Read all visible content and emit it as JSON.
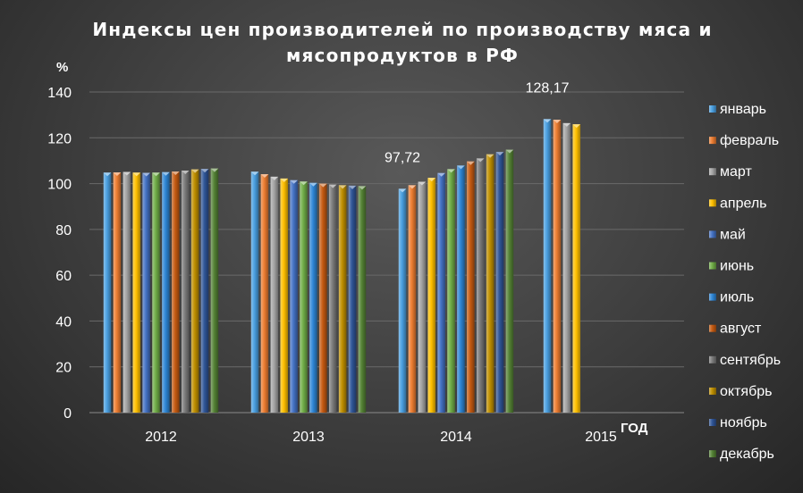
{
  "chart_data": {
    "type": "bar",
    "title_line1": "Индексы цен производителей по производству мяса и",
    "title_line2": "мясопродуктов  в РФ",
    "ylabel": "%",
    "xlabel": "ГОД",
    "ylim": [
      0,
      140
    ],
    "yticks": [
      "0",
      "20",
      "40",
      "60",
      "80",
      "100",
      "120",
      "140"
    ],
    "ytick_values": [
      0,
      20,
      40,
      60,
      80,
      100,
      120,
      140
    ],
    "categories": [
      "2012",
      "2013",
      "2014",
      "2015"
    ],
    "grid": true,
    "legend_position": "right",
    "series": [
      {
        "name": "январь",
        "color": "#4a9fe0",
        "values": [
          104.8,
          105.2,
          97.72,
          128.17
        ]
      },
      {
        "name": "февраль",
        "color": "#ed7d31",
        "values": [
          104.9,
          104.1,
          99.3,
          127.9
        ]
      },
      {
        "name": "март",
        "color": "#a5a5a5",
        "values": [
          105.1,
          103.0,
          100.8,
          126.4
        ]
      },
      {
        "name": "апрель",
        "color": "#ffc000",
        "values": [
          104.8,
          102.2,
          102.5,
          125.9
        ]
      },
      {
        "name": "май",
        "color": "#4472c4",
        "values": [
          104.7,
          101.5,
          104.6,
          null
        ]
      },
      {
        "name": "июнь",
        "color": "#70ad47",
        "values": [
          104.8,
          100.9,
          106.3,
          null
        ]
      },
      {
        "name": "июль",
        "color": "#2e86d6",
        "values": [
          105.0,
          100.3,
          107.9,
          null
        ]
      },
      {
        "name": "август",
        "color": "#c55a11",
        "values": [
          105.3,
          100.0,
          109.7,
          null
        ]
      },
      {
        "name": "сентябрь",
        "color": "#7b7b7b",
        "values": [
          105.7,
          99.6,
          111.0,
          null
        ]
      },
      {
        "name": "октябрь",
        "color": "#bf8f00",
        "values": [
          106.2,
          99.3,
          112.8,
          null
        ]
      },
      {
        "name": "ноябрь",
        "color": "#2f5597",
        "values": [
          106.4,
          99.1,
          113.8,
          null
        ]
      },
      {
        "name": "декабрь",
        "color": "#548235",
        "values": [
          106.6,
          98.9,
          114.8,
          null
        ]
      }
    ],
    "annotations": [
      {
        "text": "97,72",
        "category": "2014",
        "series": "январь"
      },
      {
        "text": "128,17",
        "category": "2015",
        "series": "январь"
      }
    ]
  }
}
